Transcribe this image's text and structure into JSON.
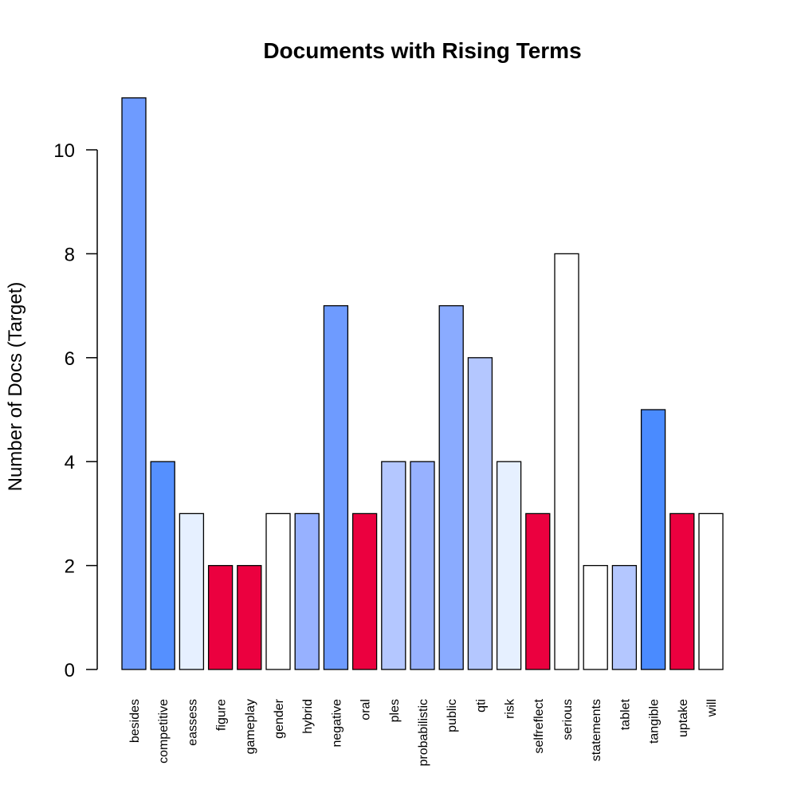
{
  "chart_data": {
    "type": "bar",
    "title": "Documents with Rising Terms",
    "xlabel": "",
    "ylabel": "Number of Docs (Target)",
    "ylim": [
      0,
      11
    ],
    "yticks": [
      0,
      2,
      4,
      6,
      8,
      10
    ],
    "grid": false,
    "categories": [
      "besides",
      "competitive",
      "eassess",
      "figure",
      "gameplay",
      "gender",
      "hybrid",
      "negative",
      "oral",
      "ples",
      "probabilistic",
      "public",
      "qti",
      "risk",
      "selfreflect",
      "serious",
      "statements",
      "tablet",
      "tangible",
      "uptake",
      "will"
    ],
    "values": [
      11,
      4,
      3,
      2,
      2,
      3,
      3,
      7,
      3,
      4,
      4,
      7,
      6,
      4,
      3,
      8,
      2,
      2,
      5,
      3,
      3
    ],
    "colors": [
      "#6E9BFF",
      "#5590FF",
      "#E6F0FF",
      "#EB003F",
      "#EB003F",
      "#FFFFFF",
      "#97B1FF",
      "#6E9BFF",
      "#EB003F",
      "#B4C7FF",
      "#97B1FF",
      "#8AABFF",
      "#B4C7FF",
      "#E6F0FF",
      "#EB003F",
      "#FFFFFF",
      "#FFFFFF",
      "#B4C7FF",
      "#4A8BFF",
      "#EB003F",
      "#FFFFFF"
    ]
  }
}
